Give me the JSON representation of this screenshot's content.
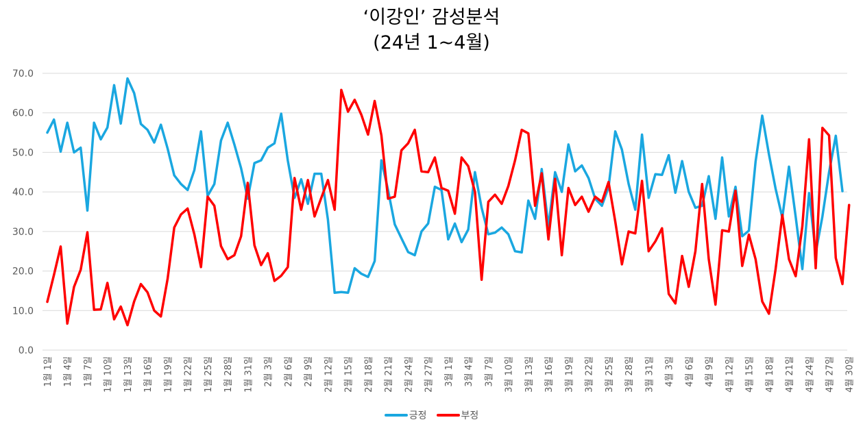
{
  "title": {
    "line1": "‘이강인’ 감성분석",
    "line2": "(24년 1~4월)"
  },
  "legend": [
    {
      "label": "긍정",
      "color": "#1aa7e0"
    },
    {
      "label": "부정",
      "color": "#ff0000"
    }
  ],
  "chart_data": {
    "type": "line",
    "title": "‘이강인’ 감성분석 (24년 1~4월)",
    "xlabel": "",
    "ylabel": "",
    "ylim": [
      0,
      70
    ],
    "yticks": [
      "0.0",
      "10.0",
      "20.0",
      "30.0",
      "40.0",
      "50.0",
      "60.0",
      "70.0"
    ],
    "grid": true,
    "legend_position": "bottom",
    "x_tick_labels": [
      "1월 1일",
      "1월 4일",
      "1월 7일",
      "1월 10일",
      "1월 13일",
      "1월 16일",
      "1월 19일",
      "1월 22일",
      "1월 25일",
      "1월 28일",
      "1월 31일",
      "2월 3일",
      "2월 6일",
      "2월 9일",
      "2월 12일",
      "2월 15일",
      "2월 18일",
      "2월 21일",
      "2월 24일",
      "2월 27일",
      "3월 1일",
      "3월 4일",
      "3월 7일",
      "3월 10일",
      "3월 13일",
      "3월 16일",
      "3월 19일",
      "3월 22일",
      "3월 25일",
      "3월 28일",
      "3월 31일",
      "4월 3일",
      "4월 6일",
      "4월 9일",
      "4월 12일",
      "4월 15일",
      "4월 18일",
      "4월 21일",
      "4월 24일",
      "4월 27일",
      "4월 30일"
    ],
    "x_start": "1월 1일",
    "x_end": "4월 30일",
    "series": [
      {
        "name": "긍정",
        "color": "#1aa7e0",
        "values": [
          55.0,
          58.3,
          50.2,
          57.5,
          50.0,
          51.2,
          35.3,
          57.5,
          53.3,
          56.3,
          67.0,
          57.3,
          68.7,
          65.0,
          57.2,
          55.7,
          52.5,
          57.0,
          51.0,
          44.2,
          42.0,
          40.5,
          45.5,
          55.3,
          39.0,
          42.0,
          53.0,
          57.5,
          52.0,
          46.0,
          38.3,
          47.3,
          48.0,
          51.2,
          52.3,
          59.8,
          47.9,
          38.5,
          43.2,
          37.0,
          44.6,
          44.6,
          33.0,
          14.5,
          14.7,
          14.5,
          20.7,
          19.3,
          18.5,
          22.5,
          48.0,
          40.5,
          31.8,
          28.3,
          24.8,
          24.0,
          30.0,
          32.0,
          41.3,
          40.5,
          28.0,
          32.0,
          27.3,
          30.5,
          45.0,
          36.0,
          29.3,
          29.7,
          31.0,
          29.3,
          25.0,
          24.7,
          37.8,
          33.2,
          45.8,
          31.2,
          45.0,
          40.0,
          52.0,
          45.2,
          46.7,
          43.5,
          38.3,
          36.5,
          41.2,
          55.3,
          50.7,
          42.0,
          35.5,
          54.5,
          38.5,
          44.5,
          44.3,
          49.3,
          39.8,
          47.8,
          40.0,
          36.0,
          36.5,
          44.0,
          33.2,
          48.7,
          33.8,
          41.3,
          28.8,
          30.2,
          47.7,
          59.3,
          49.5,
          40.8,
          33.5,
          46.4,
          33.7,
          20.5,
          39.7,
          24.6,
          33.8,
          45.0,
          54.2,
          40.2
        ]
      },
      {
        "name": "부정",
        "color": "#ff0000",
        "values": [
          12.2,
          19.0,
          26.2,
          6.7,
          16.0,
          20.3,
          29.8,
          10.2,
          10.3,
          17.0,
          7.8,
          11.0,
          6.3,
          12.3,
          16.7,
          14.6,
          10.0,
          8.5,
          18.0,
          31.0,
          34.3,
          35.8,
          29.3,
          21.0,
          38.8,
          36.5,
          26.3,
          23.0,
          24.0,
          28.8,
          42.3,
          26.5,
          21.5,
          24.5,
          17.5,
          18.8,
          21.0,
          43.5,
          35.5,
          43.0,
          33.8,
          38.5,
          43.0,
          35.5,
          65.8,
          60.3,
          63.3,
          59.5,
          54.5,
          63.0,
          54.3,
          38.3,
          38.8,
          50.5,
          52.3,
          55.7,
          45.2,
          45.0,
          48.7,
          41.0,
          40.3,
          34.5,
          48.7,
          46.5,
          40.0,
          17.8,
          37.5,
          39.3,
          37.0,
          41.5,
          48.0,
          55.7,
          54.8,
          36.5,
          44.7,
          28.0,
          43.3,
          24.0,
          41.0,
          36.7,
          38.8,
          35.0,
          38.8,
          37.5,
          42.5,
          32.5,
          21.7,
          30.0,
          29.5,
          42.8,
          25.0,
          27.5,
          30.8,
          14.2,
          11.8,
          23.8,
          16.0,
          25.0,
          42.0,
          23.0,
          11.5,
          30.3,
          30.0,
          40.3,
          21.3,
          29.2,
          23.0,
          12.3,
          9.2,
          20.5,
          34.2,
          23.0,
          18.7,
          31.3,
          53.3,
          20.7,
          56.2,
          54.3,
          23.3,
          16.7,
          36.7
        ]
      }
    ]
  }
}
